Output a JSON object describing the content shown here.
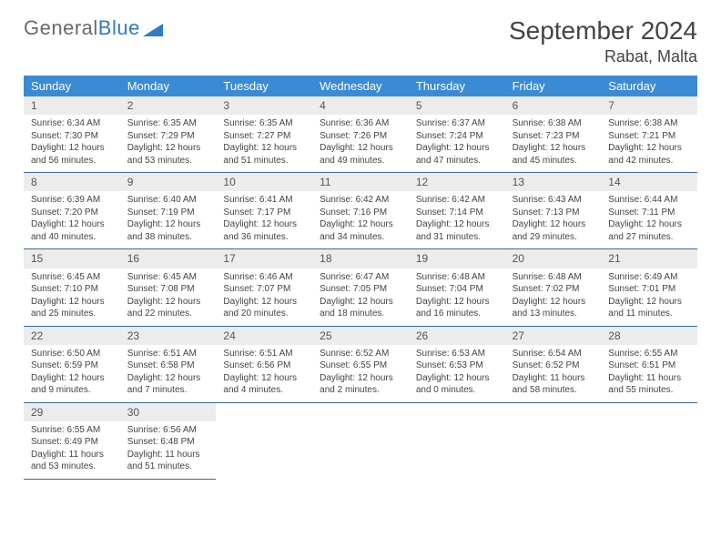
{
  "logo": {
    "text1": "General",
    "text2": "Blue"
  },
  "title": "September 2024",
  "location": "Rabat, Malta",
  "colors": {
    "header_bg": "#3b8bd4",
    "header_text": "#ffffff",
    "daynum_bg": "#ececec",
    "cell_border": "#3b6a9a",
    "logo_gray": "#6a6a6a",
    "logo_blue": "#2d7dc6"
  },
  "weekdays": [
    "Sunday",
    "Monday",
    "Tuesday",
    "Wednesday",
    "Thursday",
    "Friday",
    "Saturday"
  ],
  "days": [
    {
      "n": "1",
      "sunrise": "6:34 AM",
      "sunset": "7:30 PM",
      "daylight": "12 hours and 56 minutes."
    },
    {
      "n": "2",
      "sunrise": "6:35 AM",
      "sunset": "7:29 PM",
      "daylight": "12 hours and 53 minutes."
    },
    {
      "n": "3",
      "sunrise": "6:35 AM",
      "sunset": "7:27 PM",
      "daylight": "12 hours and 51 minutes."
    },
    {
      "n": "4",
      "sunrise": "6:36 AM",
      "sunset": "7:26 PM",
      "daylight": "12 hours and 49 minutes."
    },
    {
      "n": "5",
      "sunrise": "6:37 AM",
      "sunset": "7:24 PM",
      "daylight": "12 hours and 47 minutes."
    },
    {
      "n": "6",
      "sunrise": "6:38 AM",
      "sunset": "7:23 PM",
      "daylight": "12 hours and 45 minutes."
    },
    {
      "n": "7",
      "sunrise": "6:38 AM",
      "sunset": "7:21 PM",
      "daylight": "12 hours and 42 minutes."
    },
    {
      "n": "8",
      "sunrise": "6:39 AM",
      "sunset": "7:20 PM",
      "daylight": "12 hours and 40 minutes."
    },
    {
      "n": "9",
      "sunrise": "6:40 AM",
      "sunset": "7:19 PM",
      "daylight": "12 hours and 38 minutes."
    },
    {
      "n": "10",
      "sunrise": "6:41 AM",
      "sunset": "7:17 PM",
      "daylight": "12 hours and 36 minutes."
    },
    {
      "n": "11",
      "sunrise": "6:42 AM",
      "sunset": "7:16 PM",
      "daylight": "12 hours and 34 minutes."
    },
    {
      "n": "12",
      "sunrise": "6:42 AM",
      "sunset": "7:14 PM",
      "daylight": "12 hours and 31 minutes."
    },
    {
      "n": "13",
      "sunrise": "6:43 AM",
      "sunset": "7:13 PM",
      "daylight": "12 hours and 29 minutes."
    },
    {
      "n": "14",
      "sunrise": "6:44 AM",
      "sunset": "7:11 PM",
      "daylight": "12 hours and 27 minutes."
    },
    {
      "n": "15",
      "sunrise": "6:45 AM",
      "sunset": "7:10 PM",
      "daylight": "12 hours and 25 minutes."
    },
    {
      "n": "16",
      "sunrise": "6:45 AM",
      "sunset": "7:08 PM",
      "daylight": "12 hours and 22 minutes."
    },
    {
      "n": "17",
      "sunrise": "6:46 AM",
      "sunset": "7:07 PM",
      "daylight": "12 hours and 20 minutes."
    },
    {
      "n": "18",
      "sunrise": "6:47 AM",
      "sunset": "7:05 PM",
      "daylight": "12 hours and 18 minutes."
    },
    {
      "n": "19",
      "sunrise": "6:48 AM",
      "sunset": "7:04 PM",
      "daylight": "12 hours and 16 minutes."
    },
    {
      "n": "20",
      "sunrise": "6:48 AM",
      "sunset": "7:02 PM",
      "daylight": "12 hours and 13 minutes."
    },
    {
      "n": "21",
      "sunrise": "6:49 AM",
      "sunset": "7:01 PM",
      "daylight": "12 hours and 11 minutes."
    },
    {
      "n": "22",
      "sunrise": "6:50 AM",
      "sunset": "6:59 PM",
      "daylight": "12 hours and 9 minutes."
    },
    {
      "n": "23",
      "sunrise": "6:51 AM",
      "sunset": "6:58 PM",
      "daylight": "12 hours and 7 minutes."
    },
    {
      "n": "24",
      "sunrise": "6:51 AM",
      "sunset": "6:56 PM",
      "daylight": "12 hours and 4 minutes."
    },
    {
      "n": "25",
      "sunrise": "6:52 AM",
      "sunset": "6:55 PM",
      "daylight": "12 hours and 2 minutes."
    },
    {
      "n": "26",
      "sunrise": "6:53 AM",
      "sunset": "6:53 PM",
      "daylight": "12 hours and 0 minutes."
    },
    {
      "n": "27",
      "sunrise": "6:54 AM",
      "sunset": "6:52 PM",
      "daylight": "11 hours and 58 minutes."
    },
    {
      "n": "28",
      "sunrise": "6:55 AM",
      "sunset": "6:51 PM",
      "daylight": "11 hours and 55 minutes."
    },
    {
      "n": "29",
      "sunrise": "6:55 AM",
      "sunset": "6:49 PM",
      "daylight": "11 hours and 53 minutes."
    },
    {
      "n": "30",
      "sunrise": "6:56 AM",
      "sunset": "6:48 PM",
      "daylight": "11 hours and 51 minutes."
    }
  ],
  "labels": {
    "sunrise": "Sunrise:",
    "sunset": "Sunset:",
    "daylight": "Daylight:"
  }
}
